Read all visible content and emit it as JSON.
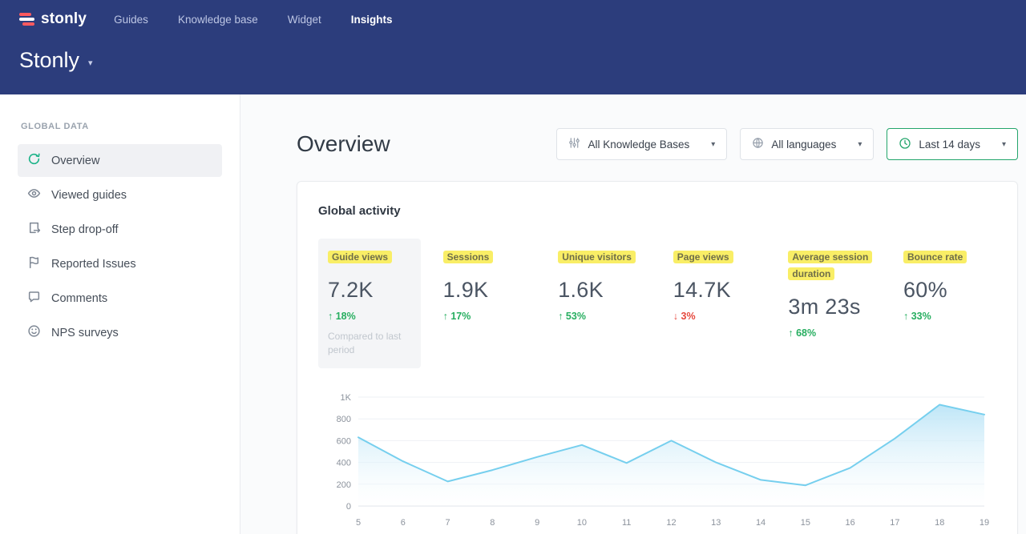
{
  "navbar": {
    "logo_text": "stonly",
    "items": [
      {
        "label": "Guides"
      },
      {
        "label": "Knowledge base"
      },
      {
        "label": "Widget"
      },
      {
        "label": "Insights"
      }
    ],
    "workspace_title": "Stonly"
  },
  "sidebar": {
    "section_label": "GLOBAL DATA",
    "items": [
      {
        "label": "Overview"
      },
      {
        "label": "Viewed guides"
      },
      {
        "label": "Step drop-off"
      },
      {
        "label": "Reported Issues"
      },
      {
        "label": "Comments"
      },
      {
        "label": "NPS surveys"
      }
    ]
  },
  "main": {
    "title": "Overview",
    "filters": [
      {
        "label": "All Knowledge Bases"
      },
      {
        "label": "All languages"
      },
      {
        "label": "Last 14 days"
      }
    ],
    "card": {
      "title": "Global activity",
      "stats": [
        {
          "label": "Guide views",
          "value": "7.2K",
          "arrow": "↑",
          "change": "18%",
          "direction": "up",
          "note": "Compared to last period"
        },
        {
          "label": "Sessions",
          "value": "1.9K",
          "arrow": "↑",
          "change": "17%",
          "direction": "up"
        },
        {
          "label": "Unique visitors",
          "value": "1.6K",
          "arrow": "↑",
          "change": "53%",
          "direction": "up"
        },
        {
          "label": "Page views",
          "value": "14.7K",
          "arrow": "↓",
          "change": "3%",
          "direction": "down"
        },
        {
          "label": "Average session duration",
          "value": "3m 23s",
          "arrow": "↑",
          "change": "68%",
          "direction": "up"
        },
        {
          "label": "Bounce rate",
          "value": "60%",
          "arrow": "↑",
          "change": "33%",
          "direction": "up"
        }
      ]
    }
  },
  "colors": {
    "navy": "#2c3d7c",
    "accent_green": "#23a56b",
    "up_green": "#27ae60",
    "down_red": "#e6483d",
    "highlight_yellow": "#f9ee66",
    "chart_line": "#76cfee"
  },
  "chart_data": {
    "type": "area",
    "title": "Global activity",
    "x": [
      5,
      6,
      7,
      8,
      9,
      10,
      11,
      12,
      13,
      14,
      15,
      16,
      17,
      18,
      19
    ],
    "values": [
      630,
      410,
      225,
      330,
      450,
      560,
      395,
      600,
      400,
      240,
      190,
      350,
      620,
      930,
      840
    ],
    "xlabel": "",
    "ylabel": "",
    "ylim": [
      0,
      1000
    ],
    "y_ticks": [
      [
        0,
        "0"
      ],
      [
        200,
        "200"
      ],
      [
        400,
        "400"
      ],
      [
        600,
        "600"
      ],
      [
        800,
        "800"
      ],
      [
        1000,
        "1K"
      ]
    ],
    "grid": true,
    "legend": false,
    "line_color": "#76cfee"
  }
}
